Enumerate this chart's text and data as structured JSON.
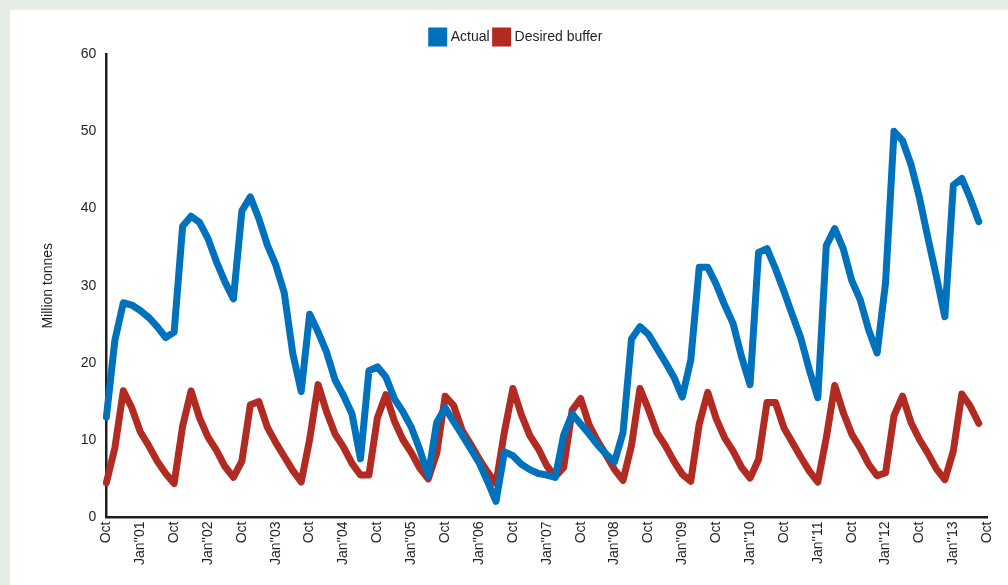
{
  "chart_data": {
    "type": "line",
    "ylabel": "Million tonnes",
    "categories": [
      "Oct",
      null,
      null,
      null,
      "Jan''01",
      null,
      null,
      null,
      "Oct",
      null,
      null,
      null,
      "Jan''02",
      null,
      null,
      null,
      "Oct",
      null,
      null,
      null,
      "Jan''03",
      null,
      null,
      null,
      "Oct",
      null,
      null,
      null,
      "Jan''04",
      null,
      null,
      null,
      "Oct",
      null,
      null,
      null,
      "Jan''05",
      null,
      null,
      null,
      "Oct",
      null,
      null,
      null,
      "Jan''06",
      null,
      null,
      null,
      "Oct",
      null,
      null,
      null,
      "Jan''07",
      null,
      null,
      null,
      "Oct",
      null,
      null,
      null,
      "Jan''08",
      null,
      null,
      null,
      "Oct",
      null,
      null,
      null,
      "Jan''09",
      null,
      null,
      null,
      "Oct",
      null,
      null,
      null,
      "Jan''10",
      null,
      null,
      null,
      "Oct",
      null,
      null,
      null,
      "Jan''11",
      null,
      null,
      null,
      "Oct",
      null,
      null,
      null,
      "Jan''12",
      null,
      null,
      null,
      "Oct",
      null,
      null,
      null,
      "Jan''13",
      null,
      null,
      null,
      "Oct"
    ],
    "ylim": [
      0,
      60
    ],
    "yticks": [
      0,
      10,
      20,
      30,
      40,
      50,
      60
    ],
    "grid": false,
    "legend": "top",
    "marker": "none",
    "line_style": "solid",
    "series": [
      {
        "name": "Actual",
        "color": "#0071bc",
        "values": [
          13,
          22.9,
          27.8,
          27.5,
          26.8,
          25.9,
          24.7,
          23.3,
          24,
          37.7,
          39.0,
          38.2,
          36.1,
          33.1,
          30.5,
          28.3,
          39.7,
          41.5,
          38.7,
          35.3,
          32.7,
          29.1,
          21.3,
          16.3,
          26.3,
          24,
          21.4,
          17.8,
          15.8,
          13.4,
          7.6,
          19,
          19.5,
          18.2,
          15.4,
          13.7,
          11.7,
          8.8,
          5.4,
          12.3,
          14.2,
          12.4,
          10.7,
          8.9,
          7.1,
          4.7,
          2.1,
          8.5,
          8.0,
          6.9,
          6.2,
          5.7,
          5.5,
          5.2,
          10.7,
          13.4,
          12.1,
          10.8,
          9.4,
          8.2,
          7.2,
          11.0,
          23.1,
          24.7,
          23.7,
          21.9,
          20.1,
          18.2,
          15.6,
          20.4,
          32.4,
          32.4,
          30.2,
          27.5,
          25.1,
          20.8,
          17.2,
          34.3,
          34.8,
          32.2,
          29.3,
          26.2,
          23.2,
          19.1,
          15.5,
          35.2,
          37.4,
          34.8,
          30.7,
          28.2,
          24.3,
          21.3,
          30.4,
          50,
          48.8,
          45.7,
          41.4,
          36.2,
          31.2,
          26.0,
          43,
          43.9,
          41.3,
          38.3,
          null
        ]
      },
      {
        "name": "Desired buffer",
        "color": "#b22b22",
        "values": [
          4.5,
          9.0,
          16.4,
          14.2,
          11.1,
          9.3,
          7.3,
          5.7,
          4.4,
          11.8,
          16.4,
          12.9,
          10.4,
          8.7,
          6.6,
          5.2,
          7.3,
          14.6,
          15.0,
          11.7,
          9.7,
          7.9,
          6.1,
          4.6,
          10.1,
          17.2,
          13.7,
          10.8,
          9.1,
          7.0,
          5.5,
          5.5,
          12.9,
          15.9,
          12.5,
          10.1,
          8.4,
          6.4,
          5.0,
          8.3,
          15.7,
          14.5,
          11.3,
          9.5,
          7.6,
          5.9,
          4.4,
          11.1,
          16.7,
          13.3,
          10.6,
          8.9,
          6.7,
          5.3,
          6.5,
          13.9,
          15.4,
          12.0,
          9.9,
          8.1,
          6.2,
          4.8,
          9.3,
          16.7,
          14.0,
          11.0,
          9.3,
          7.3,
          5.6,
          4.7,
          12.1,
          16.2,
          12.8,
          10.3,
          8.6,
          6.5,
          5.1,
          7.5,
          14.9,
          14.9,
          11.6,
          9.7,
          7.8,
          6.0,
          4.6,
          10.3,
          17.1,
          13.6,
          10.8,
          9.0,
          6.9,
          5.4,
          5.8,
          13.2,
          15.7,
          12.3,
          10.1,
          8.3,
          6.3,
          4.9,
          8.6,
          16.0,
          14.4,
          12.2,
          null
        ]
      }
    ]
  }
}
